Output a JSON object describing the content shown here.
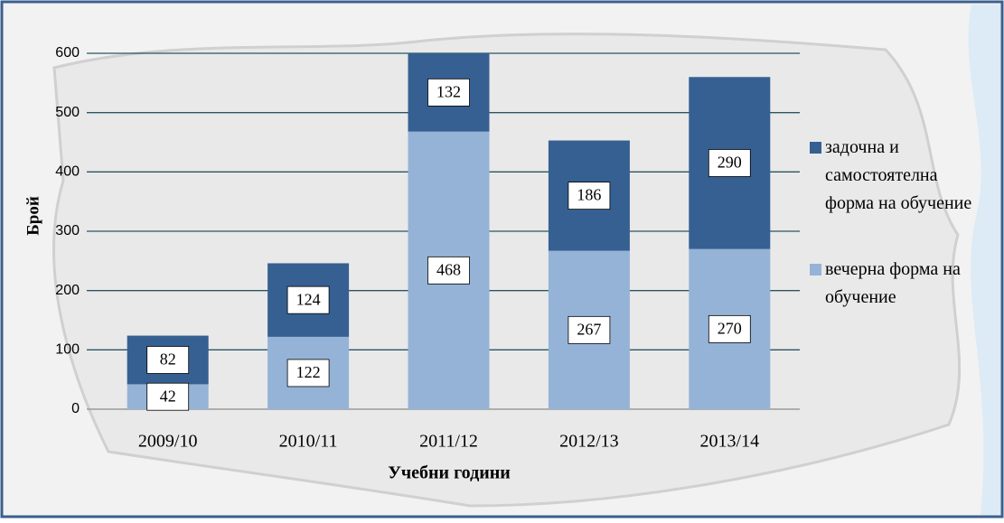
{
  "chart_data": {
    "type": "stacked-bar",
    "x_label": "Учебни години",
    "y_label": "Брой",
    "categories": [
      "2009/10",
      "2010/11",
      "2011/12",
      "2012/13",
      "2013/14"
    ],
    "series": [
      {
        "name": "вечерна форма на обучение",
        "color": "#95b3d7",
        "values": [
          42,
          122,
          468,
          267,
          270
        ]
      },
      {
        "name": "задочна и самостоятелна форма на обучение",
        "color": "#366092",
        "values": [
          82,
          124,
          132,
          186,
          290
        ]
      }
    ],
    "ylim": [
      0,
      600
    ],
    "yticks": [
      0,
      100,
      200,
      300,
      400,
      500,
      600
    ],
    "grid": true,
    "legend": "right"
  }
}
